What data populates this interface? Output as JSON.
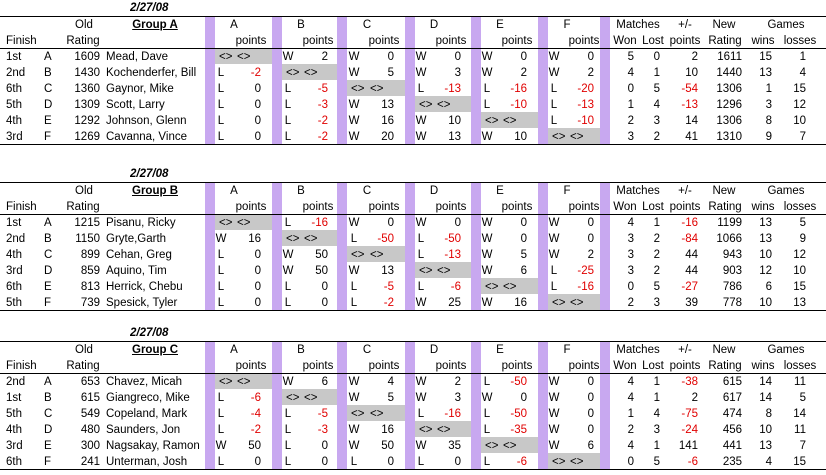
{
  "labels": {
    "finish": "Finish",
    "old": "Old",
    "rating": "Rating",
    "points": "points",
    "matches": "Matches",
    "won": "Won",
    "lost": "Lost",
    "plusminus": "+/-",
    "new": "New",
    "games": "Games",
    "wins": "wins",
    "losses": "losses",
    "cols": [
      "A",
      "B",
      "C",
      "D",
      "E",
      "F"
    ]
  },
  "groups": [
    {
      "date": "2/27/08",
      "name": "Group A",
      "rows": [
        {
          "finish": "1st",
          "seed": "A",
          "old": "1609",
          "player": "Mead, Dave",
          "m": [
            [
              "<>",
              "<>"
            ],
            [
              "W",
              "2"
            ],
            [
              "W",
              "0"
            ],
            [
              "W",
              "0"
            ],
            [
              "W",
              "0"
            ],
            [
              "W",
              "0"
            ]
          ],
          "won": "5",
          "lost": "0",
          "pm": "2",
          "new": "1611",
          "gw": "15",
          "gl": "1"
        },
        {
          "finish": "2nd",
          "seed": "B",
          "old": "1430",
          "player": "Kochenderfer, Bill",
          "m": [
            [
              "L",
              "-2"
            ],
            [
              "<>",
              "<>"
            ],
            [
              "W",
              "5"
            ],
            [
              "W",
              "3"
            ],
            [
              "W",
              "2"
            ],
            [
              "W",
              "2"
            ]
          ],
          "won": "4",
          "lost": "1",
          "pm": "10",
          "new": "1440",
          "gw": "13",
          "gl": "4"
        },
        {
          "finish": "6th",
          "seed": "C",
          "old": "1360",
          "player": "Gaynor, Mike",
          "m": [
            [
              "L",
              "0"
            ],
            [
              "L",
              "-5"
            ],
            [
              "<>",
              "<>"
            ],
            [
              "L",
              "-13"
            ],
            [
              "L",
              "-16"
            ],
            [
              "L",
              "-20"
            ]
          ],
          "won": "0",
          "lost": "5",
          "pm": "-54",
          "new": "1306",
          "gw": "1",
          "gl": "15"
        },
        {
          "finish": "5th",
          "seed": "D",
          "old": "1309",
          "player": "Scott, Larry",
          "m": [
            [
              "L",
              "0"
            ],
            [
              "L",
              "-3"
            ],
            [
              "W",
              "13"
            ],
            [
              "<>",
              "<>"
            ],
            [
              "L",
              "-10"
            ],
            [
              "L",
              "-13"
            ]
          ],
          "won": "1",
          "lost": "4",
          "pm": "-13",
          "new": "1296",
          "gw": "3",
          "gl": "12"
        },
        {
          "finish": "4th",
          "seed": "E",
          "old": "1292",
          "player": "Johnson, Glenn",
          "m": [
            [
              "L",
              "0"
            ],
            [
              "L",
              "-2"
            ],
            [
              "W",
              "16"
            ],
            [
              "W",
              "10"
            ],
            [
              "<>",
              "<>"
            ],
            [
              "L",
              "-10"
            ]
          ],
          "won": "2",
          "lost": "3",
          "pm": "14",
          "new": "1306",
          "gw": "8",
          "gl": "10"
        },
        {
          "finish": "3rd",
          "seed": "F",
          "old": "1269",
          "player": "Cavanna, Vince",
          "m": [
            [
              "L",
              "0"
            ],
            [
              "L",
              "-2"
            ],
            [
              "W",
              "20"
            ],
            [
              "W",
              "13"
            ],
            [
              "W",
              "10"
            ],
            [
              "<>",
              "<>"
            ]
          ],
          "won": "3",
          "lost": "2",
          "pm": "41",
          "new": "1310",
          "gw": "9",
          "gl": "7"
        }
      ]
    },
    {
      "date": "2/27/08",
      "name": "Group B",
      "rows": [
        {
          "finish": "1st",
          "seed": "A",
          "old": "1215",
          "player": "Pisanu, Ricky",
          "m": [
            [
              "<>",
              "<>"
            ],
            [
              "L",
              "-16"
            ],
            [
              "W",
              "0"
            ],
            [
              "W",
              "0"
            ],
            [
              "W",
              "0"
            ],
            [
              "W",
              "0"
            ]
          ],
          "won": "4",
          "lost": "1",
          "pm": "-16",
          "new": "1199",
          "gw": "13",
          "gl": "5"
        },
        {
          "finish": "2nd",
          "seed": "B",
          "old": "1150",
          "player": "Gryte,Garth",
          "m": [
            [
              "W",
              "16"
            ],
            [
              "<>",
              "<>"
            ],
            [
              "L",
              "-50"
            ],
            [
              "L",
              "-50"
            ],
            [
              "W",
              "0"
            ],
            [
              "W",
              "0"
            ]
          ],
          "won": "3",
          "lost": "2",
          "pm": "-84",
          "new": "1066",
          "gw": "13",
          "gl": "9"
        },
        {
          "finish": "4th",
          "seed": "C",
          "old": "899",
          "player": "Cehan, Greg",
          "m": [
            [
              "L",
              "0"
            ],
            [
              "W",
              "50"
            ],
            [
              "<>",
              "<>"
            ],
            [
              "L",
              "-13"
            ],
            [
              "W",
              "5"
            ],
            [
              "W",
              "2"
            ]
          ],
          "won": "3",
          "lost": "2",
          "pm": "44",
          "new": "943",
          "gw": "10",
          "gl": "12"
        },
        {
          "finish": "3rd",
          "seed": "D",
          "old": "859",
          "player": "Aquino, Tim",
          "m": [
            [
              "L",
              "0"
            ],
            [
              "W",
              "50"
            ],
            [
              "W",
              "13"
            ],
            [
              "<>",
              "<>"
            ],
            [
              "W",
              "6"
            ],
            [
              "L",
              "-25"
            ]
          ],
          "won": "3",
          "lost": "2",
          "pm": "44",
          "new": "903",
          "gw": "12",
          "gl": "10"
        },
        {
          "finish": "6th",
          "seed": "E",
          "old": "813",
          "player": "Herrick, Chebu",
          "m": [
            [
              "L",
              "0"
            ],
            [
              "L",
              "0"
            ],
            [
              "L",
              "-5"
            ],
            [
              "L",
              "-6"
            ],
            [
              "<>",
              "<>"
            ],
            [
              "L",
              "-16"
            ]
          ],
          "won": "0",
          "lost": "5",
          "pm": "-27",
          "new": "786",
          "gw": "6",
          "gl": "15"
        },
        {
          "finish": "5th",
          "seed": "F",
          "old": "739",
          "player": "Spesick, Tyler",
          "m": [
            [
              "L",
              "0"
            ],
            [
              "L",
              "0"
            ],
            [
              "L",
              "-2"
            ],
            [
              "W",
              "25"
            ],
            [
              "W",
              "16"
            ],
            [
              "<>",
              "<>"
            ]
          ],
          "won": "2",
          "lost": "3",
          "pm": "39",
          "new": "778",
          "gw": "10",
          "gl": "13"
        }
      ]
    },
    {
      "date": "2/27/08",
      "name": "Group C",
      "rows": [
        {
          "finish": "2nd",
          "seed": "A",
          "old": "653",
          "player": "Chavez, Micah",
          "m": [
            [
              "<>",
              "<>"
            ],
            [
              "W",
              "6"
            ],
            [
              "W",
              "4"
            ],
            [
              "W",
              "2"
            ],
            [
              "L",
              "-50"
            ],
            [
              "W",
              "0"
            ]
          ],
          "won": "4",
          "lost": "1",
          "pm": "-38",
          "new": "615",
          "gw": "14",
          "gl": "11"
        },
        {
          "finish": "1st",
          "seed": "B",
          "old": "615",
          "player": "Giangreco, Mike",
          "m": [
            [
              "L",
              "-6"
            ],
            [
              "<>",
              "<>"
            ],
            [
              "W",
              "5"
            ],
            [
              "W",
              "3"
            ],
            [
              "W",
              "0"
            ],
            [
              "W",
              "0"
            ]
          ],
          "won": "4",
          "lost": "1",
          "pm": "2",
          "new": "617",
          "gw": "14",
          "gl": "5"
        },
        {
          "finish": "5th",
          "seed": "C",
          "old": "549",
          "player": "Copeland, Mark",
          "m": [
            [
              "L",
              "-4"
            ],
            [
              "L",
              "-5"
            ],
            [
              "<>",
              "<>"
            ],
            [
              "L",
              "-16"
            ],
            [
              "L",
              "-50"
            ],
            [
              "W",
              "0"
            ]
          ],
          "won": "1",
          "lost": "4",
          "pm": "-75",
          "new": "474",
          "gw": "8",
          "gl": "14"
        },
        {
          "finish": "4th",
          "seed": "D",
          "old": "480",
          "player": "Saunders, Jon",
          "m": [
            [
              "L",
              "-2"
            ],
            [
              "L",
              "-3"
            ],
            [
              "W",
              "16"
            ],
            [
              "<>",
              "<>"
            ],
            [
              "L",
              "-35"
            ],
            [
              "W",
              "0"
            ]
          ],
          "won": "2",
          "lost": "3",
          "pm": "-24",
          "new": "456",
          "gw": "10",
          "gl": "11"
        },
        {
          "finish": "3rd",
          "seed": "E",
          "old": "300",
          "player": "Nagsakay, Ramon",
          "m": [
            [
              "W",
              "50"
            ],
            [
              "L",
              "0"
            ],
            [
              "W",
              "50"
            ],
            [
              "W",
              "35"
            ],
            [
              "<>",
              "<>"
            ],
            [
              "W",
              "6"
            ]
          ],
          "won": "4",
          "lost": "1",
          "pm": "141",
          "new": "441",
          "gw": "13",
          "gl": "7"
        },
        {
          "finish": "6th",
          "seed": "F",
          "old": "241",
          "player": "Unterman, Josh",
          "m": [
            [
              "L",
              "0"
            ],
            [
              "L",
              "0"
            ],
            [
              "L",
              "0"
            ],
            [
              "L",
              "0"
            ],
            [
              "L",
              "-6"
            ],
            [
              "<>",
              "<>"
            ]
          ],
          "won": "0",
          "lost": "5",
          "pm": "-6",
          "new": "235",
          "gw": "4",
          "gl": "15"
        }
      ]
    }
  ]
}
